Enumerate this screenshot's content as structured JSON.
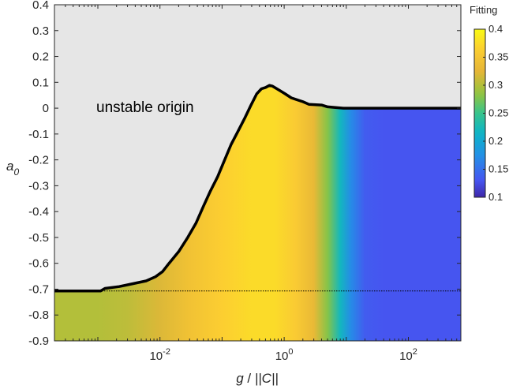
{
  "chart_data": {
    "type": "heatmap",
    "title": "",
    "xlabel_parts": {
      "var": "g",
      "sep": " / ",
      "norm": "||C||"
    },
    "ylabel_parts": {
      "var": "a",
      "sub": "0"
    },
    "x_scale": "log",
    "xlim": [
      0.0002,
      700
    ],
    "ylim": [
      -0.9,
      0.4
    ],
    "x_ticks": [
      {
        "value": 0.01,
        "base": "10",
        "exp": "-2"
      },
      {
        "value": 1,
        "base": "10",
        "exp": "0"
      },
      {
        "value": 100,
        "base": "10",
        "exp": "2"
      }
    ],
    "y_ticks": [
      0.4,
      0.3,
      0.2,
      0.1,
      0,
      -0.1,
      -0.2,
      -0.3,
      -0.4,
      -0.5,
      -0.6,
      -0.7,
      -0.8,
      -0.9
    ],
    "y_tick_labels": [
      "0.4",
      "0.3",
      "0.2",
      "0.1",
      "0",
      "-0.1",
      "-0.2",
      "-0.3",
      "-0.4",
      "-0.5",
      "-0.6",
      "-0.7",
      "-0.8",
      "-0.9"
    ],
    "annotation": "unstable origin",
    "unstable_region_color": "#e6e6e6",
    "colorbar": {
      "title": "Fitting",
      "range": [
        0.1,
        0.4
      ],
      "ticks": [
        0.4,
        0.35,
        0.3,
        0.25,
        0.2,
        0.15,
        0.1
      ],
      "tick_labels": [
        "0.4",
        "0.35",
        "0.3",
        "0.25",
        "0.2",
        "0.15",
        "0.1"
      ],
      "colormap": "parula"
    },
    "boundary": {
      "x": [
        0.0002,
        0.0011,
        0.0013,
        0.0022,
        0.0035,
        0.006,
        0.0085,
        0.011,
        0.014,
        0.02,
        0.028,
        0.038,
        0.05,
        0.065,
        0.085,
        0.11,
        0.14,
        0.18,
        0.23,
        0.29,
        0.36,
        0.43,
        0.5,
        0.58,
        0.65,
        0.8,
        1.0,
        1.3,
        2.0,
        2.5,
        4.0,
        5.0,
        9.0,
        700
      ],
      "y": [
        -0.707,
        -0.707,
        -0.697,
        -0.69,
        -0.68,
        -0.668,
        -0.652,
        -0.632,
        -0.6,
        -0.555,
        -0.5,
        -0.445,
        -0.38,
        -0.32,
        -0.265,
        -0.2,
        -0.14,
        -0.09,
        -0.04,
        0.01,
        0.055,
        0.075,
        0.08,
        0.088,
        0.085,
        0.072,
        0.058,
        0.04,
        0.025,
        0.015,
        0.012,
        0.005,
        0.0,
        0.0
      ]
    },
    "reference_line": {
      "y": -0.707,
      "style": "dotted"
    },
    "fitting_profile": {
      "x": [
        0.0002,
        0.001,
        0.003,
        0.01,
        0.03,
        0.1,
        0.3,
        0.7,
        1.5,
        3,
        5,
        8,
        12,
        20,
        40,
        100,
        700
      ],
      "value": [
        0.3,
        0.3,
        0.305,
        0.32,
        0.345,
        0.365,
        0.375,
        0.375,
        0.36,
        0.33,
        0.28,
        0.22,
        0.17,
        0.135,
        0.13,
        0.13,
        0.13
      ]
    }
  }
}
